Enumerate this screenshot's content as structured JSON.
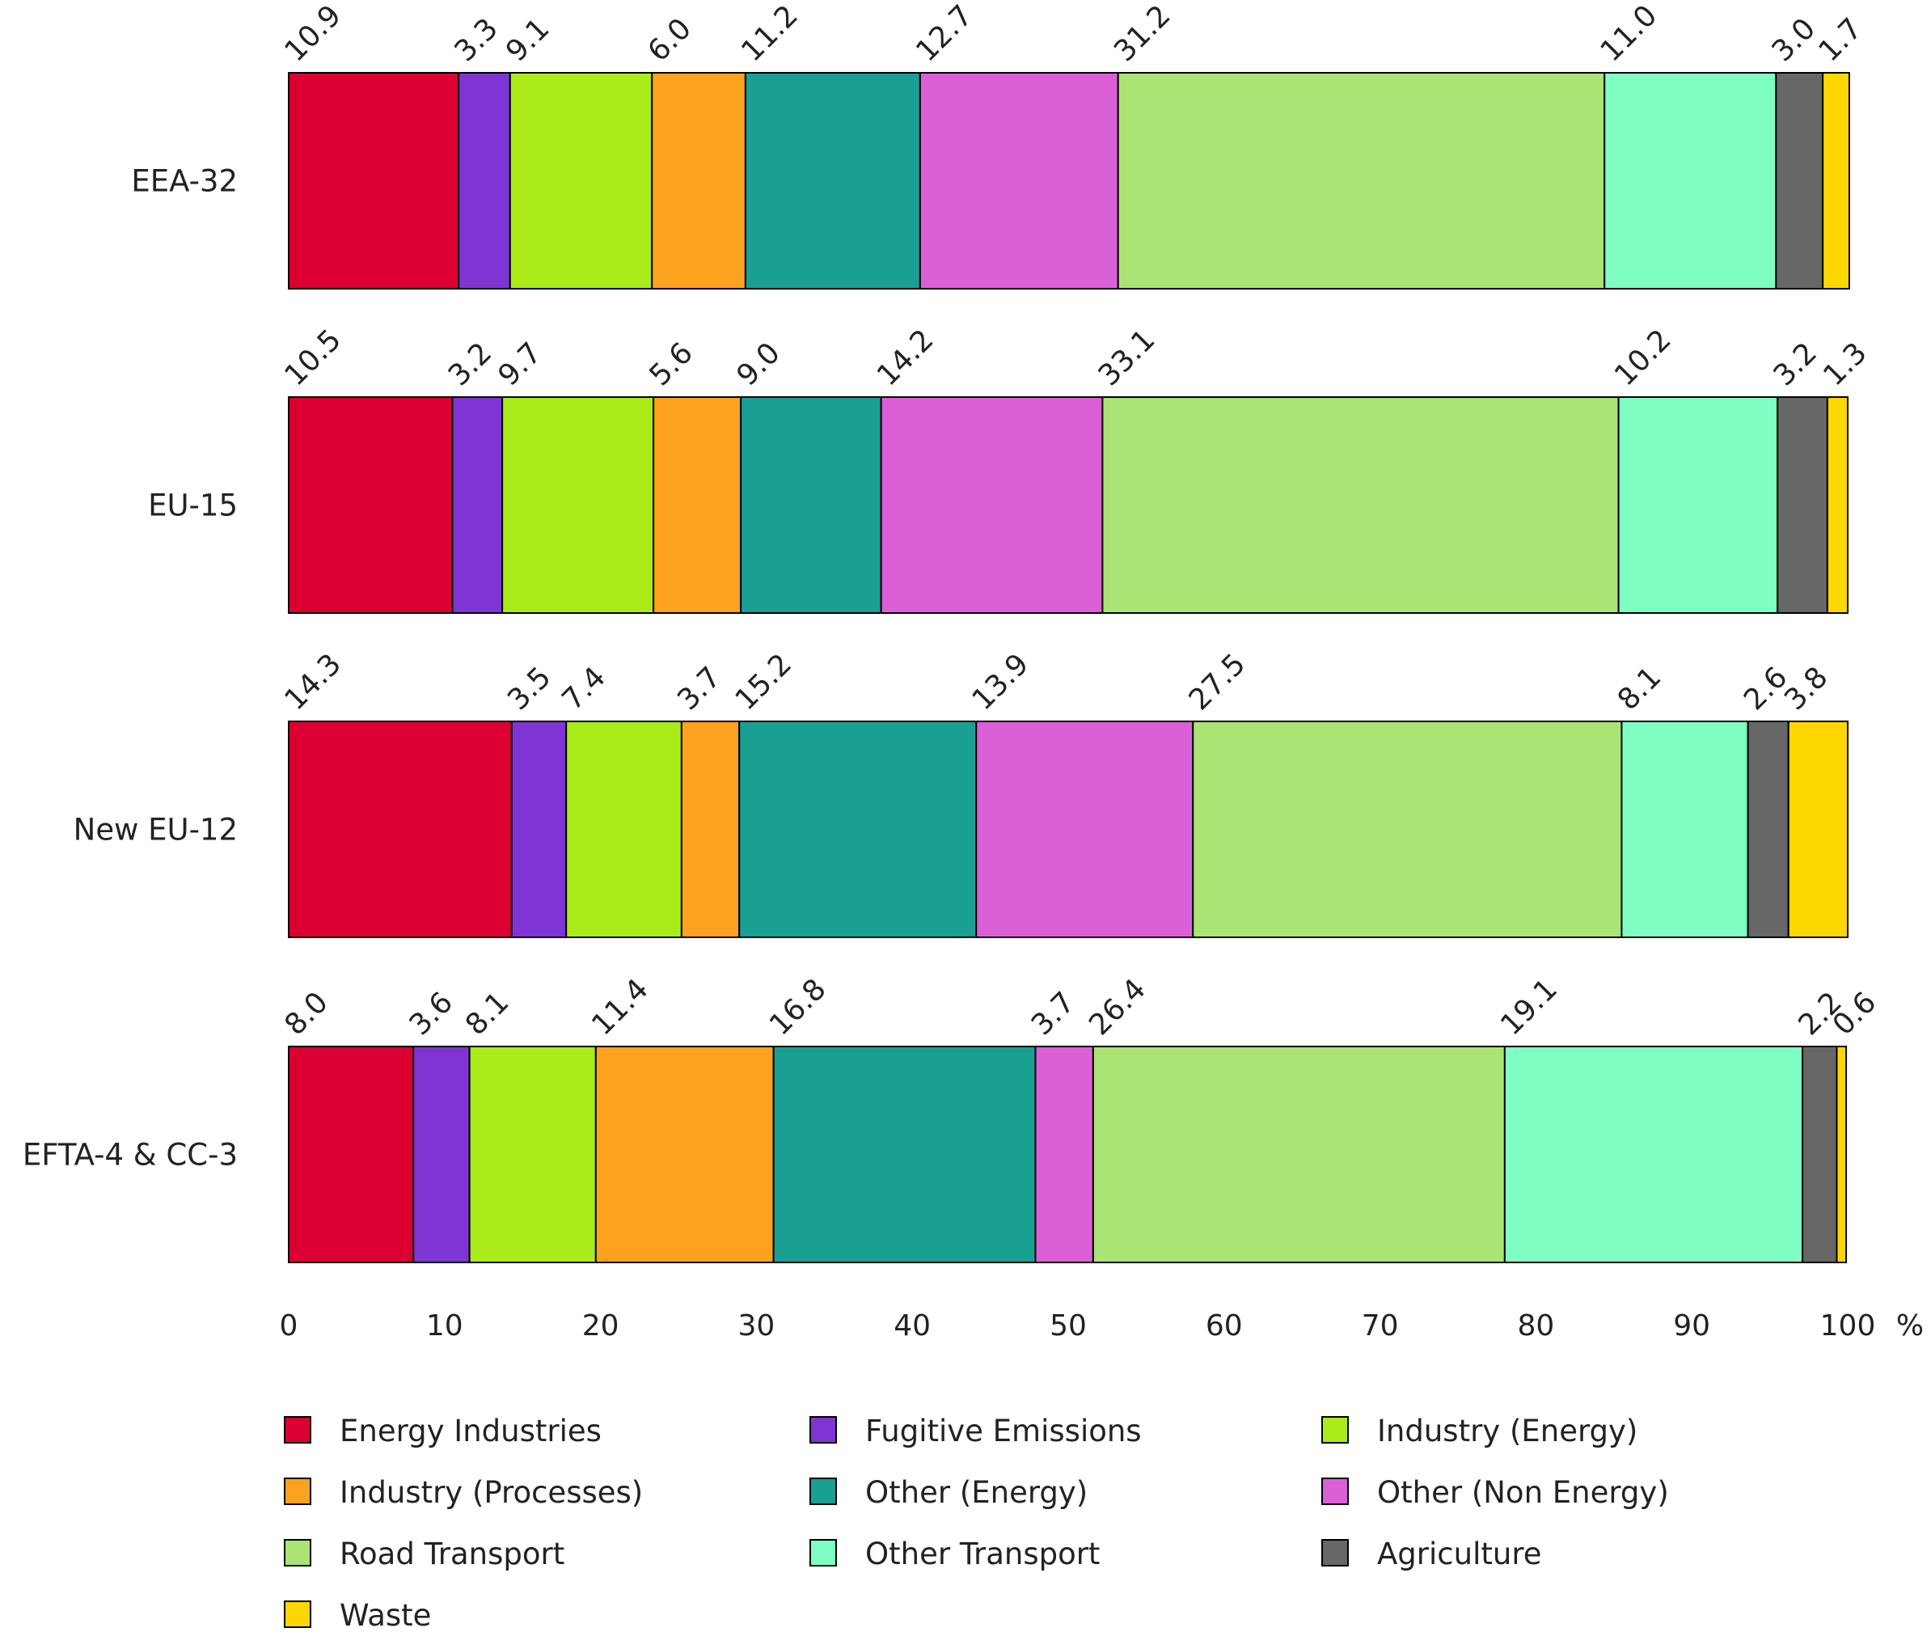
{
  "chart_data": {
    "type": "bar",
    "orientation": "horizontal",
    "stacked": true,
    "categories": [
      "EEA-32",
      "EU-15",
      "New EU-12",
      "EFTA-4 & CC-3"
    ],
    "series": [
      {
        "name": "Energy Industries",
        "color": "#DC0032",
        "values": [
          10.9,
          10.5,
          14.3,
          8.0
        ]
      },
      {
        "name": "Fugitive Emissions",
        "color": "#7F35D3",
        "values": [
          3.3,
          3.2,
          3.5,
          3.6
        ]
      },
      {
        "name": "Industry (Energy)",
        "color": "#AAEB19",
        "values": [
          9.1,
          9.7,
          7.4,
          8.1
        ]
      },
      {
        "name": "Industry      (Processes)",
        "color": "#FCA21F",
        "values": [
          6.0,
          5.6,
          3.7,
          11.4
        ]
      },
      {
        "name": "Other (Energy)",
        "color": "#1A9F93",
        "values": [
          11.2,
          9.0,
          15.2,
          16.8
        ]
      },
      {
        "name": "Other (Non Energy)",
        "color": "#DB60D8",
        "values": [
          12.7,
          14.2,
          13.9,
          3.7
        ]
      },
      {
        "name": "Road Transport",
        "color": "#A9E474",
        "values": [
          31.2,
          33.1,
          27.5,
          26.4
        ]
      },
      {
        "name": "Other Transport",
        "color": "#7FFEC4",
        "values": [
          11.0,
          10.2,
          8.1,
          19.1
        ]
      },
      {
        "name": "Agriculture",
        "color": "#676767",
        "values": [
          3.0,
          3.2,
          2.6,
          2.2
        ]
      },
      {
        "name": "Waste",
        "color": "#FFD700",
        "values": [
          1.7,
          1.3,
          3.8,
          0.6
        ]
      }
    ],
    "value_labels": [
      [
        "10.9",
        "3.3",
        "9.1",
        "6.0",
        "11.2",
        "12.7",
        "31.2",
        "11.0",
        "3.0",
        "1.7"
      ],
      [
        "10.5",
        "3.2",
        "9.7",
        "5.6",
        "9.0",
        "14.2",
        "33.1",
        "10.2",
        "3.2",
        "1.3"
      ],
      [
        "14.3",
        "3.5",
        "7.4",
        "3.7",
        "15.2",
        "13.9",
        "27.5",
        "8.1",
        "2.6",
        "3.8"
      ],
      [
        "8.0",
        "3.6",
        "8.1",
        "11.4",
        "16.8",
        "3.7",
        "26.4",
        "19.1",
        "2.2",
        "0.6"
      ]
    ],
    "x_ticks": [
      "0",
      "10",
      "20",
      "30",
      "40",
      "50",
      "60",
      "70",
      "80",
      "90",
      "100"
    ],
    "xlim": [
      0,
      100
    ],
    "xlabel": "%",
    "title": "",
    "legend_position": "bottom",
    "grid": false
  }
}
